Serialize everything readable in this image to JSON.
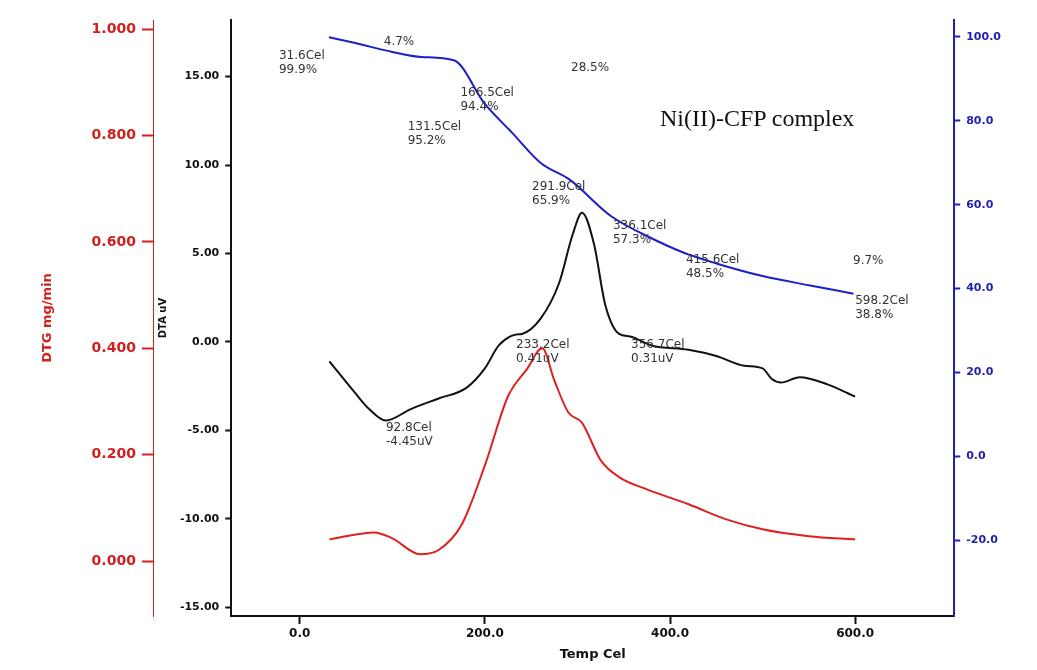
{
  "chart_data": {
    "type": "line",
    "title": "Ni(II)-CFP complex",
    "xlabel": "Temp Cel",
    "ylabel": "DTA uV",
    "y3label": "DTG mg/min",
    "xlim": [
      -74,
      707
    ],
    "xticks": [
      {
        "value": 0,
        "label": "0.0"
      },
      {
        "value": 200,
        "label": "200.0"
      },
      {
        "value": 400,
        "label": "400.0"
      },
      {
        "value": 600,
        "label": "600.0"
      }
    ],
    "ylim": [
      -15.5,
      18.2
    ],
    "yticks": [
      {
        "value": -15,
        "label": "-15.00"
      },
      {
        "value": -10,
        "label": "-10.00"
      },
      {
        "value": -5,
        "label": "-5.00"
      },
      {
        "value": 0,
        "label": "0.00"
      },
      {
        "value": 5,
        "label": "5.00"
      },
      {
        "value": 10,
        "label": "10.00"
      },
      {
        "value": 15,
        "label": "15.00"
      }
    ],
    "y2lim": [
      -38,
      104
    ],
    "y2ticks": [
      {
        "value": -20,
        "label": "-20.0"
      },
      {
        "value": 0,
        "label": "0.0"
      },
      {
        "value": 20,
        "label": "20.0"
      },
      {
        "value": 40,
        "label": "40.0"
      },
      {
        "value": 60,
        "label": "60.0"
      },
      {
        "value": 80,
        "label": "80.0"
      },
      {
        "value": 100,
        "label": "100.0"
      }
    ],
    "y3lim": [
      -0.103,
      1.017
    ],
    "y3ticks": [
      {
        "value": 0,
        "label": "0.000"
      },
      {
        "value": 0.2,
        "label": "0.200"
      },
      {
        "value": 0.4,
        "label": "0.400"
      },
      {
        "value": 0.6,
        "label": "0.600"
      },
      {
        "value": 0.8,
        "label": "0.800"
      },
      {
        "value": 1,
        "label": "1.000"
      }
    ],
    "grid": false,
    "legend": false,
    "marker": "none",
    "line_style": "solid",
    "series": [
      {
        "color": "#1f1fc8",
        "axis": "y2",
        "x": [
          31.6,
          60,
          100,
          131.5,
          166.5,
          200,
          230,
          260,
          291.9,
          336.1,
          380,
          415.6,
          450,
          500,
          550,
          598.2
        ],
        "values": [
          99.9,
          98.5,
          96.4,
          95.2,
          94.4,
          84,
          77,
          70,
          65.9,
          57.3,
          52,
          48.5,
          46,
          43,
          40.8,
          38.8
        ]
      },
      {
        "color": "#111111",
        "axis": "y",
        "x": [
          32,
          60,
          75,
          92.8,
          120,
          150,
          180,
          200,
          215,
          233.2,
          240,
          260,
          280,
          295,
          305,
          318,
          330,
          345,
          356.7,
          380,
          420,
          450,
          480,
          500,
          510,
          520,
          540,
          570,
          600
        ],
        "values": [
          -1.1,
          -2.9,
          -3.8,
          -4.45,
          -3.8,
          -3.2,
          -2.6,
          -1.5,
          -0.2,
          0.41,
          0.45,
          1.3,
          3.3,
          6.1,
          7.3,
          5.5,
          2.1,
          0.45,
          0.31,
          -0.2,
          -0.45,
          -0.8,
          -1.35,
          -1.5,
          -2.1,
          -2.3,
          -2,
          -2.4,
          -3.1
        ]
      },
      {
        "color": "#e02020",
        "axis": "y3",
        "x": [
          32,
          50,
          80,
          100,
          130,
          150,
          175,
          200,
          225,
          245,
          262,
          275,
          290,
          305,
          325,
          345,
          375,
          420,
          460,
          500,
          550,
          600
        ],
        "values": [
          0.041,
          0.047,
          0.054,
          0.043,
          0.013,
          0.021,
          0.069,
          0.18,
          0.31,
          0.36,
          0.4,
          0.34,
          0.28,
          0.26,
          0.19,
          0.158,
          0.135,
          0.107,
          0.079,
          0.06,
          0.047,
          0.041
        ]
      }
    ],
    "annotations": [
      "31.6Cel\n99.9%",
      "4.7%",
      "166.5Cel\n94.4%",
      "131.5Cel\n95.2%",
      "28.5%",
      "291.9Cel\n65.9%",
      "336.1Cel\n57.3%",
      "415.6Cel\n48.5%",
      "9.7%",
      "598.2Cel\n38.8%",
      "233.2Cel\n0.41uV",
      "356.7Cel\n0.31uV",
      "92.8Cel\n-4.45uV"
    ]
  }
}
